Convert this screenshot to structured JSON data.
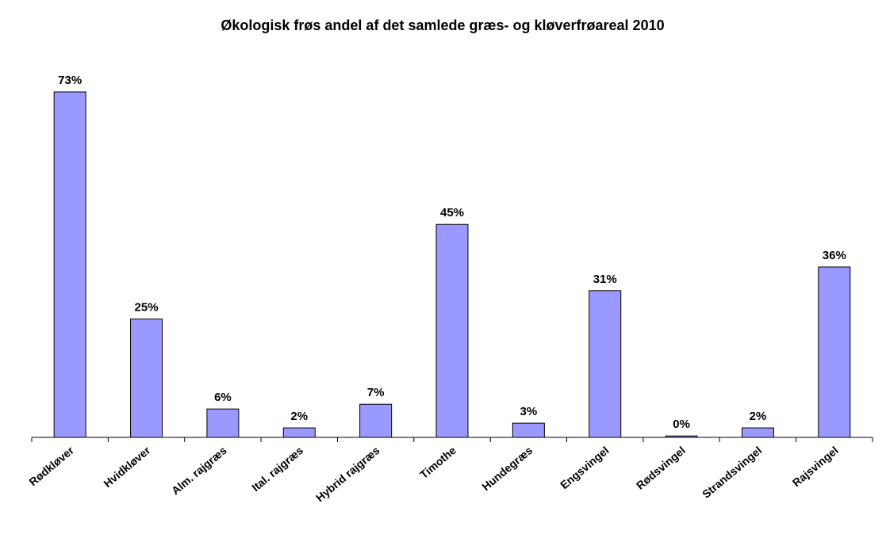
{
  "chart_data": {
    "type": "bar",
    "title": "Økologisk frøs andel af det samlede græs- og kløverfrøareal 2010",
    "categories": [
      "Rødkløver",
      "Hvidkløver",
      "Alm. rajgræs",
      "Ital. rajgræs",
      "Hybrid rajgræs",
      "Timothe",
      "Hundegræs",
      "Engsvingel",
      "Rødsvingel",
      "Strandsvingel",
      "Rajsvingel"
    ],
    "values": [
      73,
      25,
      6,
      2,
      7,
      45,
      3,
      31,
      0.3,
      2,
      36
    ],
    "value_labels": [
      "73%",
      "25%",
      "6%",
      "2%",
      "7%",
      "45%",
      "3%",
      "31%",
      "0%",
      "2%",
      "36%"
    ],
    "color": "#9999ff"
  }
}
